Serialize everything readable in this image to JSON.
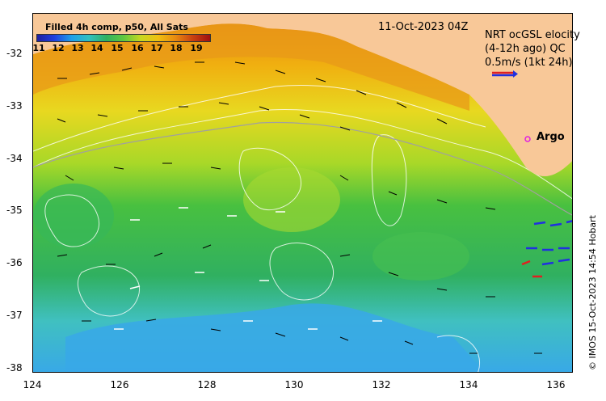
{
  "map": {
    "colorbar_title": "Filled 4h comp, p50, All Sats",
    "colorbar_ticks": [
      "11",
      "12",
      "13",
      "14",
      "15",
      "16",
      "17",
      "18",
      "19"
    ],
    "date": "11-Oct-2023 04Z",
    "legend": {
      "line1": "NRT ocGSL elocity",
      "line2": "(4-12h ago) QC",
      "line3": "0.5m/s (1kt 24h)"
    },
    "argo_label": "Argo",
    "credit": "© IMOS 15-Oct-2023 14:54 Hobart",
    "x_ticks": [
      "124",
      "126",
      "128",
      "130",
      "132",
      "134",
      "136"
    ],
    "y_ticks": [
      "-32",
      "-33",
      "-34",
      "-35",
      "-36",
      "-37",
      "-38"
    ],
    "colors": {
      "land": "#f8c898",
      "sst_warm": "#e88a10",
      "sst_mid": "#e8d820",
      "sst_cool": "#38c060",
      "sst_cold": "#30a0e8",
      "vector_ref": "#e02020",
      "argo": "#e020e0"
    }
  }
}
